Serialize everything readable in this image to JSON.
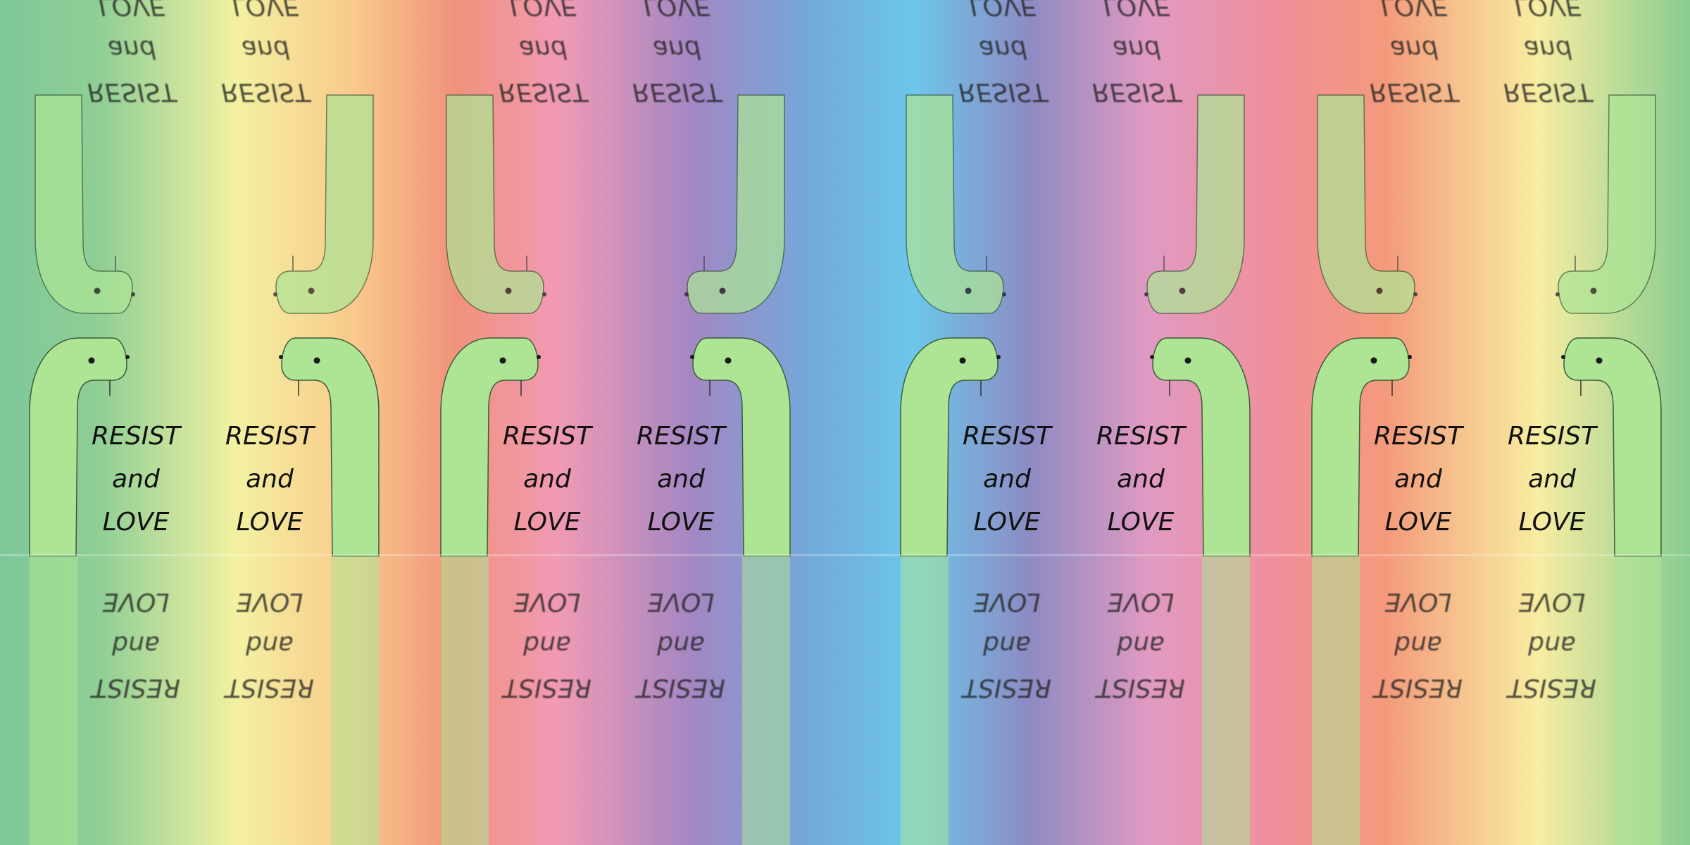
{
  "scene": {
    "motif_name": "snake",
    "poster_lines": [
      "RESIST",
      "and",
      "LOVE"
    ],
    "snake_color": "#ade595",
    "snake_outline": "#3d5a3a",
    "text_color": "#111111"
  }
}
